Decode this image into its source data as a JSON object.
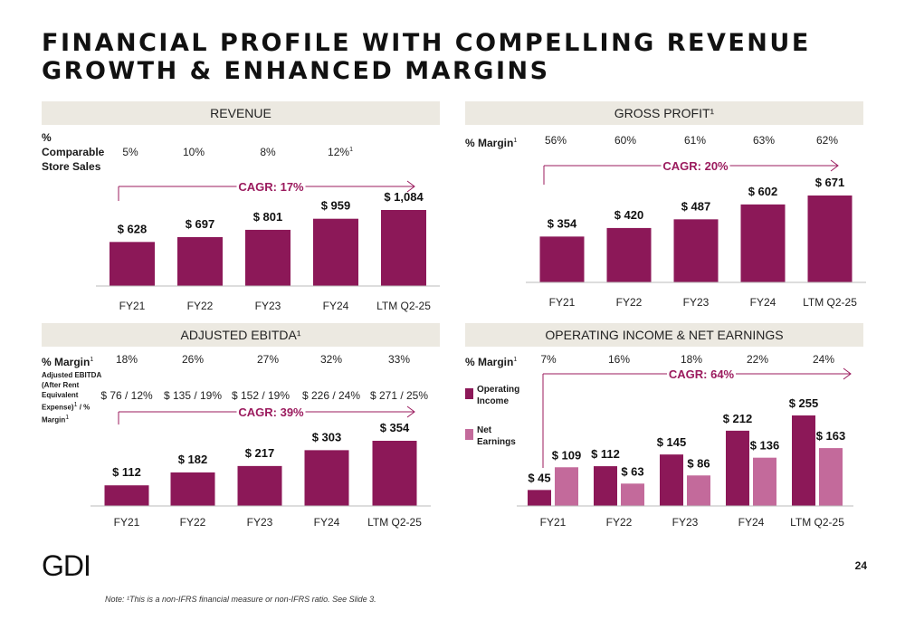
{
  "title": {
    "line1": "FINANCIAL PROFILE WITH COMPELLING REVENUE",
    "line2": "GROWTH & ENHANCED MARGINS"
  },
  "colors": {
    "primary": "#8c1858",
    "secondary": "#c36a9b",
    "header_bg": "#ece9e1",
    "cagr": "#9b1b5e"
  },
  "revenue": {
    "header": "REVENUE",
    "row_label": "% Comparable Store Sales",
    "row_values": [
      "5%",
      "10%",
      "8%",
      "12%"
    ],
    "row_value_sups": [
      "",
      "",
      "",
      "1"
    ],
    "cagr": "CAGR: 17%"
  },
  "gross": {
    "header": "GROSS PROFIT¹",
    "row_label": "% Margin",
    "row_label_sup": "1",
    "row_values": [
      "56%",
      "60%",
      "61%",
      "63%",
      "62%"
    ],
    "cagr": "CAGR: 20%"
  },
  "ebitda": {
    "header": "ADJUSTED EBITDA¹",
    "row_label": "% Margin",
    "row_label_sup": "1",
    "row_values": [
      "18%",
      "26%",
      "27%",
      "32%",
      "33%"
    ],
    "row2_label_lines": [
      "Adjusted EBITDA",
      "(After Rent",
      "Equivalent"
    ],
    "row2_label_l4a": "Expense)",
    "row2_label_l4b": " / %",
    "row2_label_l5": "Margin",
    "sup": "1",
    "row2_values": [
      "$ 76 / 12%",
      "$ 135 / 19%",
      "$ 152 / 19%",
      "$ 226 / 24%",
      "$ 271 / 25%"
    ],
    "cagr": "CAGR: 39%"
  },
  "opinc": {
    "header": "OPERATING INCOME & NET EARNINGS",
    "row_label": "% Margin",
    "row_label_sup": "1",
    "row_values": [
      "7%",
      "16%",
      "18%",
      "22%",
      "24%"
    ],
    "legend": [
      {
        "line1": "Operating",
        "line2": "Income"
      },
      {
        "line1": "Net",
        "line2": "Earnings"
      }
    ],
    "cagr": "CAGR: 64%"
  },
  "chart_data": [
    {
      "type": "bar",
      "title": "REVENUE",
      "categories": [
        "FY21",
        "FY22",
        "FY23",
        "FY24",
        "LTM Q2-25"
      ],
      "values": [
        628,
        697,
        801,
        959,
        1084
      ],
      "labels": [
        "$ 628",
        "$ 697",
        "$ 801",
        "$ 959",
        "$ 1,084"
      ],
      "annotation": "CAGR: 17%",
      "ylim": [
        0,
        1084
      ]
    },
    {
      "type": "bar",
      "title": "GROSS PROFIT¹",
      "categories": [
        "FY21",
        "FY22",
        "FY23",
        "FY24",
        "LTM Q2-25"
      ],
      "values": [
        354,
        420,
        487,
        602,
        671
      ],
      "labels": [
        "$ 354",
        "$ 420",
        "$ 487",
        "$ 602",
        "$ 671"
      ],
      "annotation": "CAGR: 20%",
      "ylim": [
        0,
        671
      ]
    },
    {
      "type": "bar",
      "title": "ADJUSTED EBITDA¹",
      "categories": [
        "FY21",
        "FY22",
        "FY23",
        "FY24",
        "LTM Q2-25"
      ],
      "values": [
        112,
        182,
        217,
        303,
        354
      ],
      "labels": [
        "$ 112",
        "$ 182",
        "$ 217",
        "$ 303",
        "$ 354"
      ],
      "annotation": "CAGR: 39%",
      "ylim": [
        0,
        354
      ]
    },
    {
      "type": "bar",
      "title": "OPERATING INCOME & NET EARNINGS",
      "categories": [
        "FY21",
        "FY22",
        "FY23",
        "FY24",
        "LTM Q2-25"
      ],
      "series": [
        {
          "name": "Operating Income",
          "values": [
            45,
            112,
            145,
            212,
            255
          ],
          "labels": [
            "$ 45",
            "$ 112",
            "$ 145",
            "$ 212",
            "$ 255"
          ]
        },
        {
          "name": "Net Earnings",
          "values": [
            109,
            63,
            86,
            136,
            163
          ],
          "labels": [
            "$ 109",
            "$ 63",
            "$ 86",
            "$ 136",
            "$ 163"
          ]
        }
      ],
      "annotation": "CAGR: 64%",
      "ylim": [
        0,
        255
      ]
    }
  ],
  "footer": {
    "logo": "GDI",
    "page": "24",
    "note": "Note: ¹This is a non-IFRS financial measure or non-IFRS ratio. See Slide 3."
  }
}
